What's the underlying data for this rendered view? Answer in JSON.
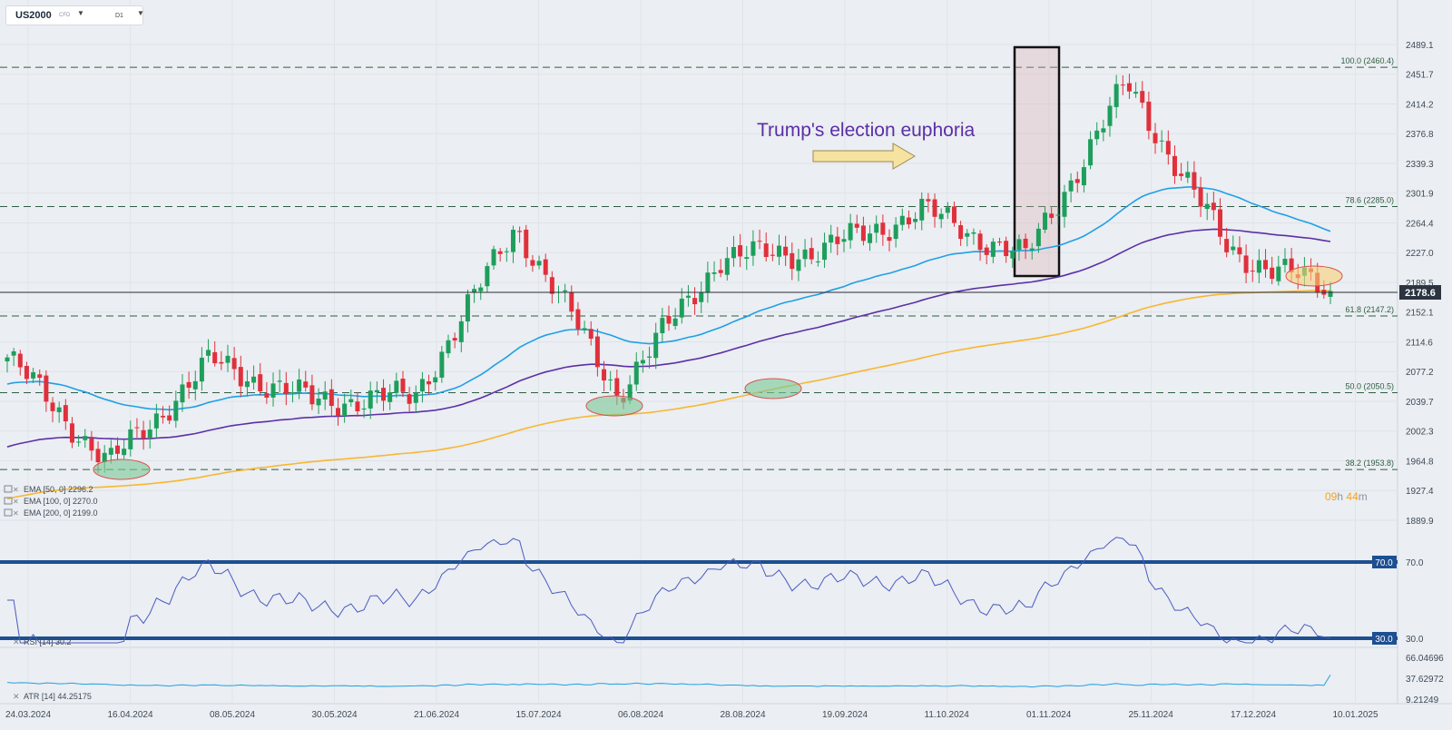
{
  "instrument": {
    "symbol": "US2000",
    "type_badge": "CFD",
    "timeframe": "D1"
  },
  "countdown": {
    "hours": "09",
    "h_unit": "h",
    "minutes": "44",
    "m_unit": "m"
  },
  "annotation": {
    "text": "Trump's election euphoria"
  },
  "price_axis": {
    "ticks": [
      "2489.1",
      "2451.7",
      "2414.2",
      "2376.8",
      "2339.3",
      "2301.9",
      "2264.4",
      "2227.0",
      "2189.5",
      "2152.1",
      "2114.6",
      "2077.2",
      "2039.7",
      "2002.3",
      "1964.8",
      "1927.4",
      "1889.9"
    ],
    "current_price": "2178.6"
  },
  "fib_levels": [
    {
      "label": "100.0 (2460.4)",
      "value": 2460.4
    },
    {
      "label": "78.6 (2285.0)",
      "value": 2285.0
    },
    {
      "label": "61.8 (2147.2)",
      "value": 2147.2
    },
    {
      "label": "50.0 (2050.5)",
      "value": 2050.5
    },
    {
      "label": "38.2 (1953.8)",
      "value": 1953.8
    }
  ],
  "indicators": [
    {
      "label": "EMA [50, 0] 2296.2",
      "color": "#1ea0e6"
    },
    {
      "label": "EMA [100, 0] 2270.0",
      "color": "#5c2fa8"
    },
    {
      "label": "EMA [200, 0] 2199.0",
      "color": "#f7b731"
    }
  ],
  "rsi": {
    "label": "RSI [14] 30.2",
    "upper": "70.0",
    "lower": "30.0",
    "axis": [
      "70.0",
      "30.0"
    ]
  },
  "atr": {
    "label": "ATR [14] 44.25175",
    "axis": [
      "66.04696",
      "37.62972",
      "9.21249"
    ]
  },
  "x_axis": [
    "24.03.2024",
    "16.04.2024",
    "08.05.2024",
    "30.05.2024",
    "21.06.2024",
    "15.07.2024",
    "06.08.2024",
    "28.08.2024",
    "19.09.2024",
    "11.10.2024",
    "01.11.2024",
    "25.11.2024",
    "17.12.2024",
    "10.01.2025"
  ],
  "colors": {
    "up": "#1e9e5c",
    "down": "#e0303b",
    "ema50": "#1ea0e6",
    "ema100": "#5c2fa8",
    "ema200": "#f7b731",
    "rsi_bound": "#1d4f91",
    "annotation": "#5b2ea8"
  },
  "chart_data": {
    "type": "candlestick",
    "ylim": [
      1889.9,
      2489.1
    ],
    "close_samples": [
      {
        "date": "24.03.2024",
        "close": 2095
      },
      {
        "date": "16.04.2024",
        "close": 1960
      },
      {
        "date": "08.05.2024",
        "close": 2090
      },
      {
        "date": "30.05.2024",
        "close": 2040
      },
      {
        "date": "21.06.2024",
        "close": 2045
      },
      {
        "date": "15.07.2024",
        "close": 2260
      },
      {
        "date": "06.08.2024",
        "close": 2050
      },
      {
        "date": "28.08.2024",
        "close": 2220
      },
      {
        "date": "19.09.2024",
        "close": 2230
      },
      {
        "date": "11.10.2024",
        "close": 2280
      },
      {
        "date": "01.11.2024",
        "close": 2220
      },
      {
        "date": "25.11.2024",
        "close": 2440
      },
      {
        "date": "17.12.2024",
        "close": 2230
      },
      {
        "date": "10.01.2025",
        "close": 2178.6
      }
    ]
  }
}
